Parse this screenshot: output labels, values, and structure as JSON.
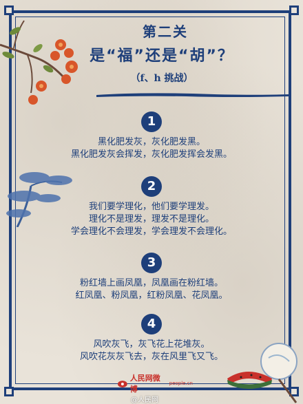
{
  "title": {
    "line1": "第二关",
    "line2": "是“福”还是“胡”？",
    "line3": "（f、h 挑战）"
  },
  "sections": [
    {
      "number": "1",
      "lines": [
        "黑化肥发灰，灰化肥发黑。",
        "黑化肥发灰会挥发，灰化肥发挥会发黑。"
      ]
    },
    {
      "number": "2",
      "lines": [
        "我们要学理化，他们要学理发。",
        "理化不是理发，理发不是理化。",
        "学会理化不会理发，学会理发不会理化。"
      ]
    },
    {
      "number": "3",
      "lines": [
        "粉红墙上画凤凰，凤凰画在粉红墙。",
        "红凤凰、粉凤凰，红粉凤凰、花凤凰。"
      ]
    },
    {
      "number": "4",
      "lines": [
        "风吹灰飞，灰飞花上花堆灰。",
        "风吹花灰灰飞去，灰在风里飞又飞。"
      ]
    }
  ],
  "footer": {
    "logo_text": "人民网微博",
    "logo_subtext": "people.cn",
    "watermark": "@人民网"
  },
  "colors": {
    "primary_blue": "#1e3f7a",
    "flower_orange": "#d8562a",
    "watermelon_red": "#c8312b",
    "paper": "#e9e3d9"
  }
}
